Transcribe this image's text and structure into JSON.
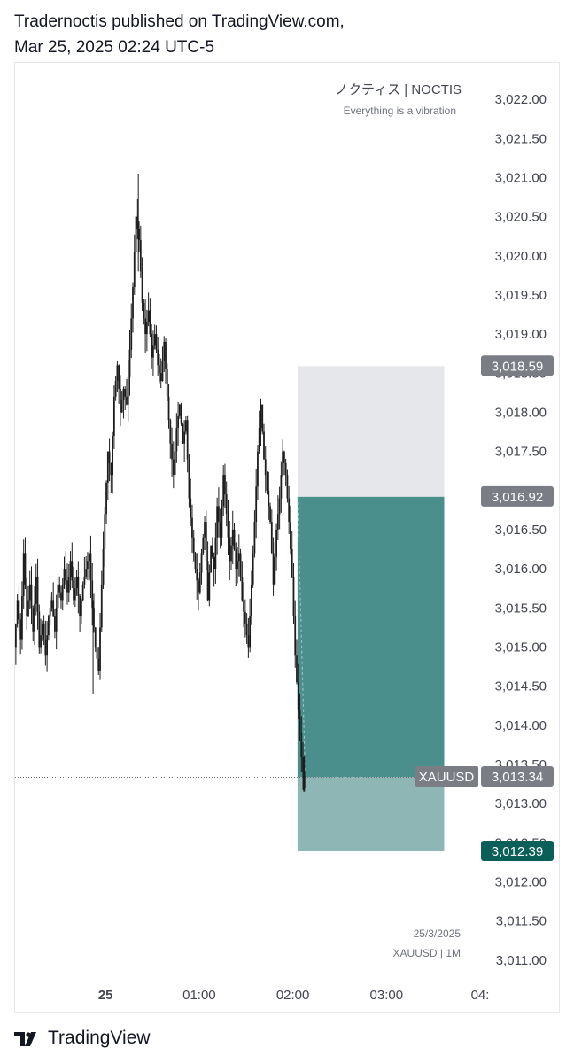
{
  "header": {
    "line1": "Tradernoctis published on TradingView.com,",
    "line2": "Mar 25, 2025 02:24 UTC-5"
  },
  "watermark": {
    "title": "ノクティス | NOCTIS",
    "subtitle": "Everything is a vibration"
  },
  "info": {
    "date": "25/3/2025",
    "symbol_tf": "XAUUSD | 1M"
  },
  "footer": {
    "brand": "TradingView"
  },
  "chart_data": {
    "type": "candlestick",
    "symbol": "XAUUSD",
    "timeframe": "1M",
    "ylim": [
      3010.85,
      3022.25
    ],
    "y_ticks": [
      "3,022.00",
      "3,021.50",
      "3,021.00",
      "3,020.50",
      "3,020.00",
      "3,019.50",
      "3,019.00",
      "3,018.50",
      "3,018.00",
      "3,017.50",
      "3,017.00",
      "3,016.50",
      "3,016.00",
      "3,015.50",
      "3,015.00",
      "3,014.50",
      "3,014.00",
      "3,013.50",
      "3,013.00",
      "3,012.50",
      "3,012.00",
      "3,011.50",
      "3,011.00"
    ],
    "y_tick_values": [
      3022.0,
      3021.5,
      3021.0,
      3020.5,
      3020.0,
      3019.5,
      3019.0,
      3018.5,
      3018.0,
      3017.5,
      3017.0,
      3016.5,
      3016.0,
      3015.5,
      3015.0,
      3014.5,
      3014.0,
      3013.5,
      3013.0,
      3012.5,
      3012.0,
      3011.5,
      3011.0
    ],
    "x_ticks": [
      {
        "label": "25",
        "minute": 0,
        "bold": true
      },
      {
        "label": "01:00",
        "minute": 60,
        "bold": false
      },
      {
        "label": "02:00",
        "minute": 120,
        "bold": false
      },
      {
        "label": "03:00",
        "minute": 180,
        "bold": false
      },
      {
        "label": "04:",
        "minute": 240,
        "bold": false
      }
    ],
    "xlim_minutes": [
      -58,
      240
    ],
    "position": {
      "type": "long",
      "start_minute": 123,
      "end_minute": 217,
      "target": 3018.59,
      "entry": 3016.92,
      "stop": 3012.39,
      "target_label": "3,018.59",
      "entry_label": "3,016.92",
      "stop_label": "3,012.39"
    },
    "last_price": 3013.34,
    "last_price_label": "3,013.34",
    "last_price_symbol": "XAUUSD",
    "colors": {
      "profit_zone": "#e6e7ea",
      "loss_zone_dark": "#4b8f8d",
      "loss_zone_light": "#8db6b5",
      "candle": "#1c1c1c",
      "label_gray": "#7b7d85",
      "label_teal": "#0b5f59"
    },
    "close_path": [
      [
        -58,
        3015.0
      ],
      [
        -56,
        3015.6
      ],
      [
        -54,
        3015.1
      ],
      [
        -52,
        3016.2
      ],
      [
        -50,
        3015.4
      ],
      [
        -48,
        3015.8
      ],
      [
        -46,
        3015.2
      ],
      [
        -44,
        3015.9
      ],
      [
        -42,
        3015.0
      ],
      [
        -40,
        3015.3
      ],
      [
        -38,
        3014.9
      ],
      [
        -36,
        3015.4
      ],
      [
        -34,
        3015.6
      ],
      [
        -32,
        3015.2
      ],
      [
        -30,
        3015.8
      ],
      [
        -28,
        3015.6
      ],
      [
        -26,
        3016.0
      ],
      [
        -24,
        3015.7
      ],
      [
        -22,
        3016.1
      ],
      [
        -20,
        3015.6
      ],
      [
        -18,
        3015.9
      ],
      [
        -16,
        3015.4
      ],
      [
        -14,
        3015.8
      ],
      [
        -12,
        3016.0
      ],
      [
        -10,
        3016.2
      ],
      [
        -8,
        3015.5
      ],
      [
        -6,
        3015.0
      ],
      [
        -4,
        3014.7
      ],
      [
        -2,
        3015.8
      ],
      [
        0,
        3016.7
      ],
      [
        2,
        3017.5
      ],
      [
        4,
        3017.2
      ],
      [
        6,
        3018.2
      ],
      [
        8,
        3018.6
      ],
      [
        10,
        3018.0
      ],
      [
        12,
        3018.3
      ],
      [
        14,
        3018.1
      ],
      [
        16,
        3018.8
      ],
      [
        18,
        3019.6
      ],
      [
        20,
        3020.5
      ],
      [
        22,
        3020.2
      ],
      [
        24,
        3019.4
      ],
      [
        26,
        3019.0
      ],
      [
        28,
        3019.3
      ],
      [
        30,
        3018.7
      ],
      [
        32,
        3019.0
      ],
      [
        34,
        3018.6
      ],
      [
        36,
        3018.4
      ],
      [
        38,
        3018.9
      ],
      [
        40,
        3018.2
      ],
      [
        42,
        3017.6
      ],
      [
        44,
        3017.2
      ],
      [
        46,
        3017.8
      ],
      [
        48,
        3018.1
      ],
      [
        50,
        3017.6
      ],
      [
        52,
        3017.9
      ],
      [
        54,
        3016.9
      ],
      [
        56,
        3016.4
      ],
      [
        58,
        3016.0
      ],
      [
        60,
        3015.7
      ],
      [
        62,
        3016.2
      ],
      [
        64,
        3016.6
      ],
      [
        66,
        3015.6
      ],
      [
        68,
        3016.3
      ],
      [
        70,
        3016.0
      ],
      [
        72,
        3016.8
      ],
      [
        74,
        3016.4
      ],
      [
        76,
        3017.2
      ],
      [
        78,
        3016.7
      ],
      [
        80,
        3016.1
      ],
      [
        82,
        3016.5
      ],
      [
        84,
        3016.0
      ],
      [
        86,
        3016.2
      ],
      [
        88,
        3015.6
      ],
      [
        90,
        3015.3
      ],
      [
        92,
        3015.0
      ],
      [
        94,
        3015.8
      ],
      [
        96,
        3016.6
      ],
      [
        98,
        3017.5
      ],
      [
        100,
        3018.1
      ],
      [
        102,
        3017.4
      ],
      [
        104,
        3017.0
      ],
      [
        106,
        3016.6
      ],
      [
        108,
        3015.8
      ],
      [
        110,
        3016.5
      ],
      [
        112,
        3016.9
      ],
      [
        114,
        3017.5
      ],
      [
        116,
        3017.2
      ],
      [
        118,
        3016.6
      ],
      [
        120,
        3015.9
      ],
      [
        122,
        3014.9
      ],
      [
        124,
        3014.2
      ],
      [
        126,
        3013.6
      ],
      [
        128,
        3013.2
      ]
    ]
  }
}
